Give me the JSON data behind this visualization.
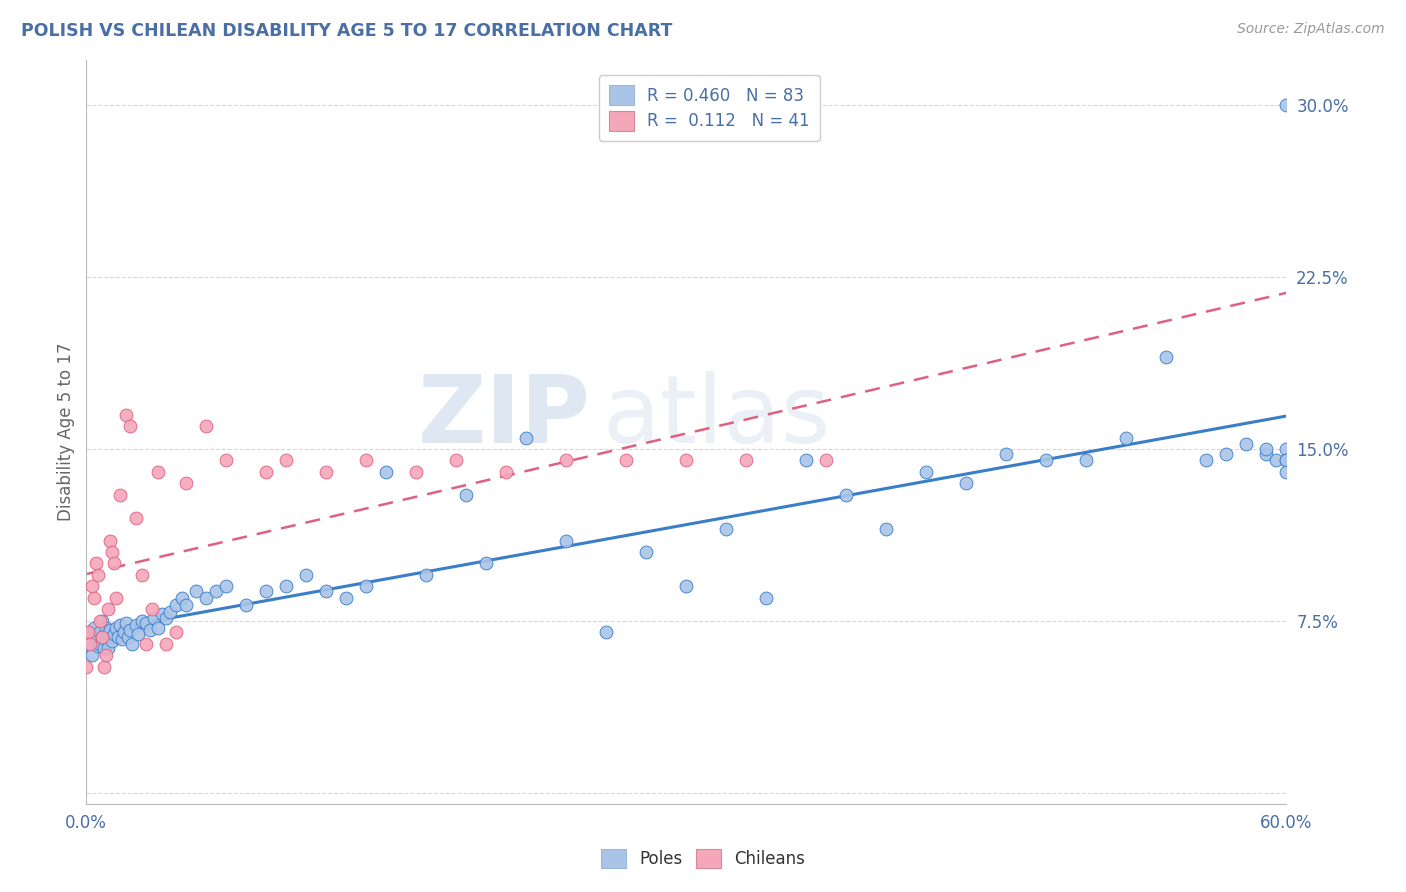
{
  "title": "POLISH VS CHILEAN DISABILITY AGE 5 TO 17 CORRELATION CHART",
  "source": "Source: ZipAtlas.com",
  "ylabel": "Disability Age 5 to 17",
  "xlim": [
    0.0,
    0.6
  ],
  "ylim": [
    -0.005,
    0.32
  ],
  "xticks": [
    0.0,
    0.1,
    0.2,
    0.3,
    0.4,
    0.5,
    0.6
  ],
  "xticklabels": [
    "0.0%",
    "",
    "",
    "",
    "",
    "",
    "60.0%"
  ],
  "yticks": [
    0.0,
    0.075,
    0.15,
    0.225,
    0.3
  ],
  "yticklabels": [
    "",
    "7.5%",
    "15.0%",
    "22.5%",
    "30.0%"
  ],
  "poles_color": "#aac4e8",
  "chileans_color": "#f4a7b9",
  "background_color": "#ffffff",
  "grid_color": "#d8d8d8",
  "title_color": "#4a6fa5",
  "axis_label_color": "#666666",
  "tick_label_color": "#4a6fa5",
  "poles_line_color": "#3a7ec8",
  "chileans_line_color": "#e06080",
  "legend_label1": "R = 0.460   N = 83",
  "legend_label2": "R =  0.112   N = 41",
  "watermark_zip": "ZIP",
  "watermark_atlas": "atlas",
  "poles_x": [
    0.001,
    0.002,
    0.003,
    0.004,
    0.005,
    0.006,
    0.007,
    0.007,
    0.008,
    0.008,
    0.009,
    0.01,
    0.01,
    0.011,
    0.011,
    0.012,
    0.013,
    0.014,
    0.015,
    0.016,
    0.017,
    0.018,
    0.019,
    0.02,
    0.021,
    0.022,
    0.023,
    0.025,
    0.026,
    0.028,
    0.03,
    0.032,
    0.034,
    0.036,
    0.038,
    0.04,
    0.042,
    0.045,
    0.048,
    0.05,
    0.055,
    0.06,
    0.065,
    0.07,
    0.08,
    0.09,
    0.1,
    0.11,
    0.12,
    0.13,
    0.14,
    0.15,
    0.17,
    0.19,
    0.2,
    0.22,
    0.24,
    0.26,
    0.28,
    0.3,
    0.32,
    0.34,
    0.36,
    0.38,
    0.4,
    0.42,
    0.44,
    0.46,
    0.48,
    0.5,
    0.52,
    0.54,
    0.56,
    0.57,
    0.58,
    0.59,
    0.59,
    0.595,
    0.6,
    0.6,
    0.6,
    0.6,
    0.6
  ],
  "poles_y": [
    0.065,
    0.07,
    0.06,
    0.072,
    0.068,
    0.064,
    0.07,
    0.065,
    0.075,
    0.068,
    0.063,
    0.072,
    0.067,
    0.069,
    0.063,
    0.071,
    0.066,
    0.069,
    0.072,
    0.068,
    0.073,
    0.067,
    0.07,
    0.074,
    0.068,
    0.071,
    0.065,
    0.073,
    0.069,
    0.075,
    0.074,
    0.071,
    0.076,
    0.072,
    0.078,
    0.076,
    0.079,
    0.082,
    0.085,
    0.082,
    0.088,
    0.085,
    0.088,
    0.09,
    0.082,
    0.088,
    0.09,
    0.095,
    0.088,
    0.085,
    0.09,
    0.14,
    0.095,
    0.13,
    0.1,
    0.155,
    0.11,
    0.07,
    0.105,
    0.09,
    0.115,
    0.085,
    0.145,
    0.13,
    0.115,
    0.14,
    0.135,
    0.148,
    0.145,
    0.145,
    0.155,
    0.19,
    0.145,
    0.148,
    0.152,
    0.148,
    0.15,
    0.145,
    0.15,
    0.145,
    0.3,
    0.145,
    0.14
  ],
  "chileans_x": [
    0.0,
    0.001,
    0.002,
    0.003,
    0.004,
    0.005,
    0.006,
    0.007,
    0.008,
    0.009,
    0.01,
    0.011,
    0.012,
    0.013,
    0.014,
    0.015,
    0.017,
    0.02,
    0.022,
    0.025,
    0.028,
    0.03,
    0.033,
    0.036,
    0.04,
    0.045,
    0.05,
    0.06,
    0.07,
    0.09,
    0.1,
    0.12,
    0.14,
    0.165,
    0.185,
    0.21,
    0.24,
    0.27,
    0.3,
    0.33,
    0.37
  ],
  "chileans_y": [
    0.055,
    0.07,
    0.065,
    0.09,
    0.085,
    0.1,
    0.095,
    0.075,
    0.068,
    0.055,
    0.06,
    0.08,
    0.11,
    0.105,
    0.1,
    0.085,
    0.13,
    0.165,
    0.16,
    0.12,
    0.095,
    0.065,
    0.08,
    0.14,
    0.065,
    0.07,
    0.135,
    0.16,
    0.145,
    0.14,
    0.145,
    0.14,
    0.145,
    0.14,
    0.145,
    0.14,
    0.145,
    0.145,
    0.145,
    0.145,
    0.145
  ]
}
